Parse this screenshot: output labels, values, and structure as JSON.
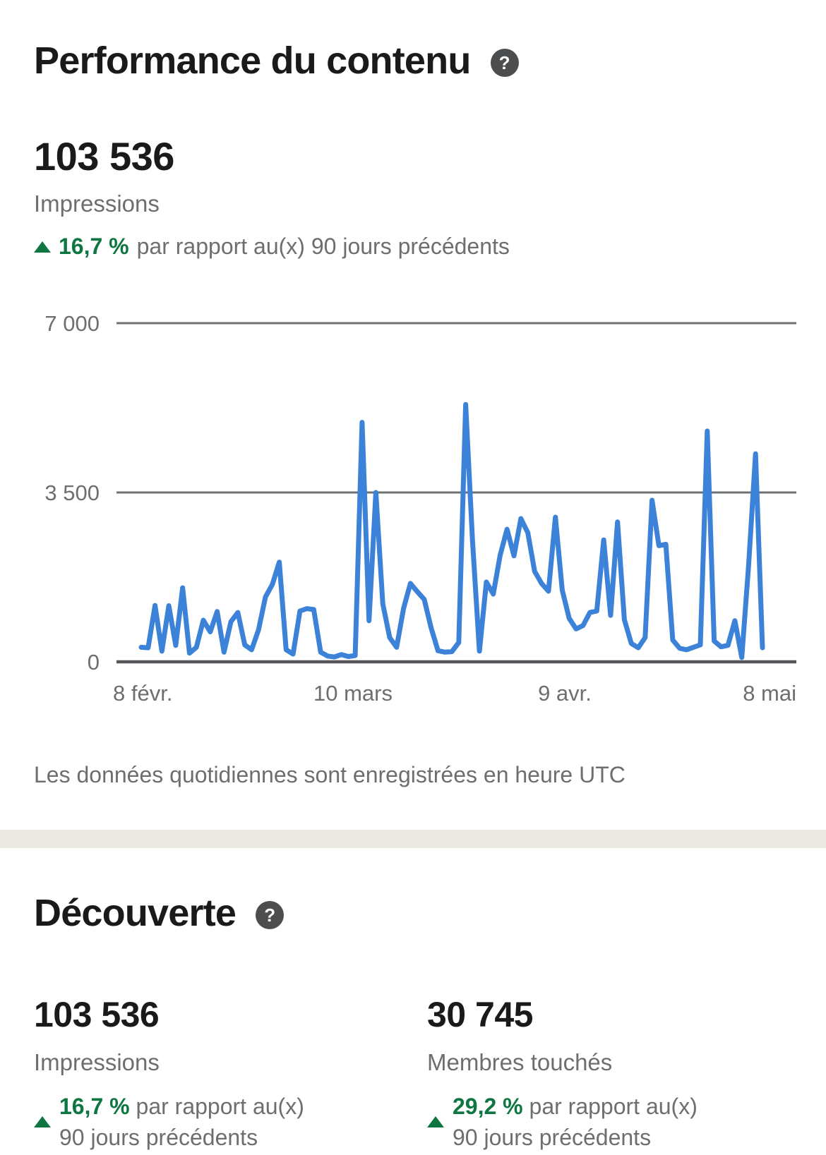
{
  "header": {
    "title": "Performance du contenu",
    "help_glyph": "?"
  },
  "summary": {
    "value": "103 536",
    "label": "Impressions",
    "change": {
      "direction": "up",
      "percent": "16,7 %",
      "suffix": "par rapport au(x) 90 jours précédents"
    }
  },
  "chart_data": {
    "type": "line",
    "series": [
      {
        "name": "Impressions",
        "values": [
          300,
          290,
          1165,
          220,
          1160,
          340,
          1530,
          180,
          300,
          860,
          620,
          1040,
          200,
          830,
          1020,
          350,
          250,
          660,
          1340,
          1600,
          2060,
          250,
          160,
          1050,
          1100,
          1080,
          200,
          120,
          100,
          150,
          110,
          130,
          4950,
          850,
          3500,
          1200,
          500,
          300,
          1100,
          1620,
          1450,
          1290,
          700,
          230,
          200,
          210,
          400,
          5320,
          2500,
          220,
          1650,
          1400,
          2200,
          2740,
          2190,
          2960,
          2670,
          1870,
          1620,
          1460,
          2990,
          1480,
          900,
          680,
          750,
          1020,
          1050,
          2520,
          960,
          2890,
          870,
          380,
          290,
          500,
          3340,
          2400,
          2430,
          450,
          280,
          250,
          300,
          350,
          4770,
          430,
          310,
          340,
          850,
          90,
          2000,
          4300,
          290
        ]
      }
    ],
    "x_tick_labels": [
      "8 févr.",
      "10 mars",
      "9 avr.",
      "8 mai"
    ],
    "y_ticks": [
      {
        "value": 7000,
        "label": "7 000"
      },
      {
        "value": 3500,
        "label": "3 500"
      },
      {
        "value": 0,
        "label": "0"
      }
    ],
    "ylim": [
      0,
      7000
    ],
    "xlabel": "",
    "ylabel": "",
    "grid": "horizontal",
    "legend": "none"
  },
  "footnote": "Les données quotidiennes sont enregistrées en heure UTC",
  "discovery": {
    "title": "Découverte",
    "help_glyph": "?",
    "stats": [
      {
        "value": "103 536",
        "label": "Impressions",
        "direction": "up",
        "percent": "16,7 %",
        "suffix_line1": "par rapport au(x)",
        "suffix_line2": "90 jours précédents"
      },
      {
        "value": "30 745",
        "label": "Membres touchés",
        "direction": "up",
        "percent": "29,2 %",
        "suffix_line1": "par rapport au(x)",
        "suffix_line2": "90 jours précédents"
      }
    ]
  },
  "colors": {
    "accent_blue": "#3b82d8",
    "success_green": "#0e7641",
    "text_primary": "#1a1a1a",
    "text_muted": "#6e6e6e",
    "gridline": "#6f7072",
    "axis_line": "#55565a",
    "divider": "#ece9e3",
    "help_icon_bg": "#4b4d4f"
  }
}
